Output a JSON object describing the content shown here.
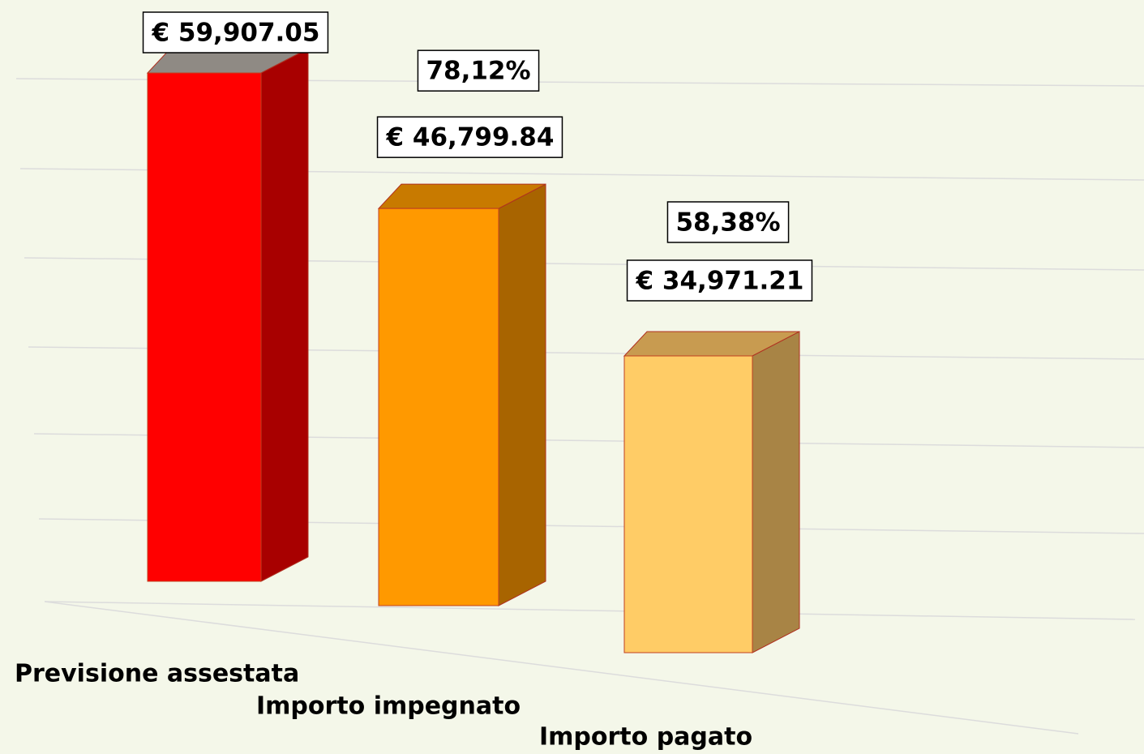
{
  "chart_data": {
    "type": "bar3d",
    "categories": [
      "Previsione assestata",
      "Importo impegnato",
      "Importo pagato"
    ],
    "values": [
      59907.05,
      46799.84,
      34971.21
    ],
    "value_labels": [
      "€ 59,907.05",
      "€ 46,799.84",
      "€ 34,971.21"
    ],
    "percentages": [
      null,
      78.12,
      58.38
    ],
    "percent_labels": [
      null,
      "78,12%",
      "58,38%"
    ],
    "colors": [
      "#ff0000",
      "#ff9900",
      "#ffcc66"
    ],
    "top_colors": [
      "#8f8a84",
      "#c87a00",
      "#c89b50"
    ],
    "side_colors": [
      "#a80000",
      "#a86400",
      "#a88445"
    ]
  }
}
